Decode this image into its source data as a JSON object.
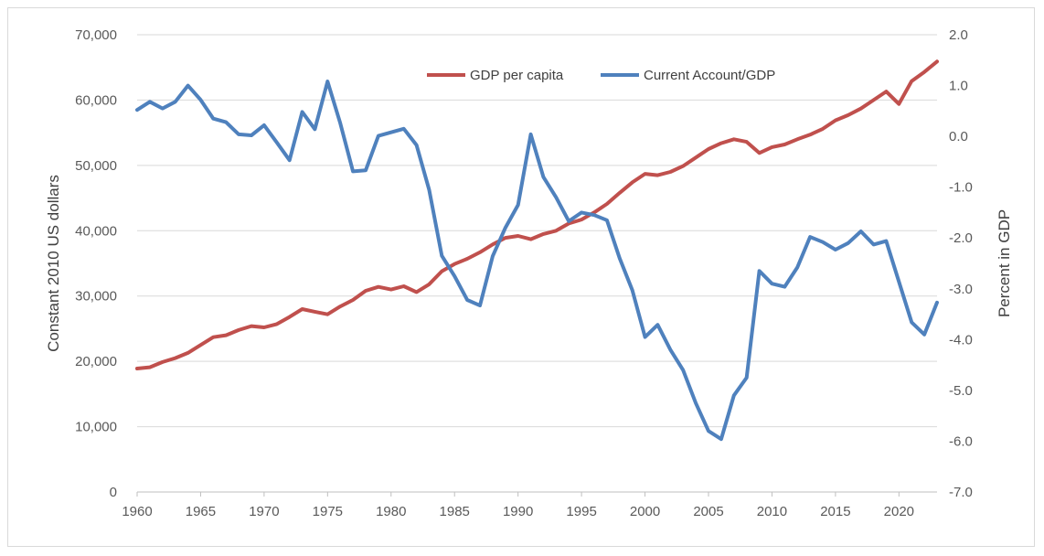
{
  "chart_data": {
    "type": "line",
    "title": "",
    "xlabel": "",
    "ylabel_left": "Constant 2010 US dollars",
    "ylabel_right": "Percent in GDP",
    "xlim": [
      1960,
      2023
    ],
    "x_ticks": [
      1960,
      1965,
      1970,
      1975,
      1980,
      1985,
      1990,
      1995,
      2000,
      2005,
      2010,
      2015,
      2020
    ],
    "y_left": {
      "range": [
        0,
        70000
      ],
      "ticks": [
        0,
        10000,
        20000,
        30000,
        40000,
        50000,
        60000,
        70000
      ],
      "tick_labels": [
        "0",
        "10,000",
        "20,000",
        "30,000",
        "40,000",
        "50,000",
        "60,000",
        "70,000"
      ]
    },
    "y_right": {
      "range": [
        -7,
        2
      ],
      "ticks": [
        -7,
        -6,
        -5,
        -4,
        -3,
        -2,
        -1,
        0,
        1,
        2
      ],
      "tick_labels": [
        "-7.0",
        "-6.0",
        "-5.0",
        "-4.0",
        "-3.0",
        "-2.0",
        "-1.0",
        "0.0",
        "1.0",
        "2.0"
      ]
    },
    "grid": "horizontal",
    "legend_position": "top-center",
    "x": [
      1960,
      1961,
      1962,
      1963,
      1964,
      1965,
      1966,
      1967,
      1968,
      1969,
      1970,
      1971,
      1972,
      1973,
      1974,
      1975,
      1976,
      1977,
      1978,
      1979,
      1980,
      1981,
      1982,
      1983,
      1984,
      1985,
      1986,
      1987,
      1988,
      1989,
      1990,
      1991,
      1992,
      1993,
      1994,
      1995,
      1996,
      1997,
      1998,
      1999,
      2000,
      2001,
      2002,
      2003,
      2004,
      2005,
      2006,
      2007,
      2008,
      2009,
      2010,
      2011,
      2012,
      2013,
      2014,
      2015,
      2016,
      2017,
      2018,
      2019,
      2020,
      2021,
      2022,
      2023
    ],
    "series": [
      {
        "name": "GDP per capita",
        "axis": "left",
        "color": "#c0504d",
        "values": [
          18900,
          19100,
          19900,
          20500,
          21300,
          22500,
          23700,
          24000,
          24800,
          25400,
          25200,
          25700,
          26800,
          28000,
          27600,
          27200,
          28400,
          29400,
          30800,
          31400,
          31000,
          31500,
          30600,
          31800,
          33800,
          34900,
          35700,
          36700,
          37900,
          38900,
          39200,
          38700,
          39500,
          40000,
          41100,
          41700,
          42800,
          44100,
          45800,
          47400,
          48700,
          48500,
          49000,
          49900,
          51200,
          52500,
          53400,
          54000,
          53600,
          51900,
          52800,
          53200,
          54000,
          54700,
          55600,
          56900,
          57700,
          58700,
          60000,
          61300,
          59400,
          62900,
          64300,
          65900
        ]
      },
      {
        "name": "Current Account/GDP",
        "axis": "right",
        "color": "#4f81bd",
        "values": [
          0.52,
          0.68,
          0.55,
          0.68,
          1.0,
          0.72,
          0.35,
          0.28,
          0.04,
          0.02,
          0.22,
          -0.12,
          -0.47,
          0.48,
          0.14,
          1.08,
          0.26,
          -0.69,
          -0.67,
          0.01,
          0.08,
          0.15,
          -0.17,
          -1.05,
          -2.35,
          -2.75,
          -3.22,
          -3.33,
          -2.36,
          -1.8,
          -1.35,
          0.04,
          -0.8,
          -1.2,
          -1.67,
          -1.5,
          -1.55,
          -1.65,
          -2.4,
          -3.03,
          -3.95,
          -3.71,
          -4.2,
          -4.6,
          -5.25,
          -5.8,
          -5.96,
          -5.1,
          -4.75,
          -2.65,
          -2.9,
          -2.96,
          -2.58,
          -1.98,
          -2.08,
          -2.23,
          -2.1,
          -1.87,
          -2.13,
          -2.06,
          -2.86,
          -3.66,
          -3.9,
          -3.27
        ]
      }
    ]
  }
}
